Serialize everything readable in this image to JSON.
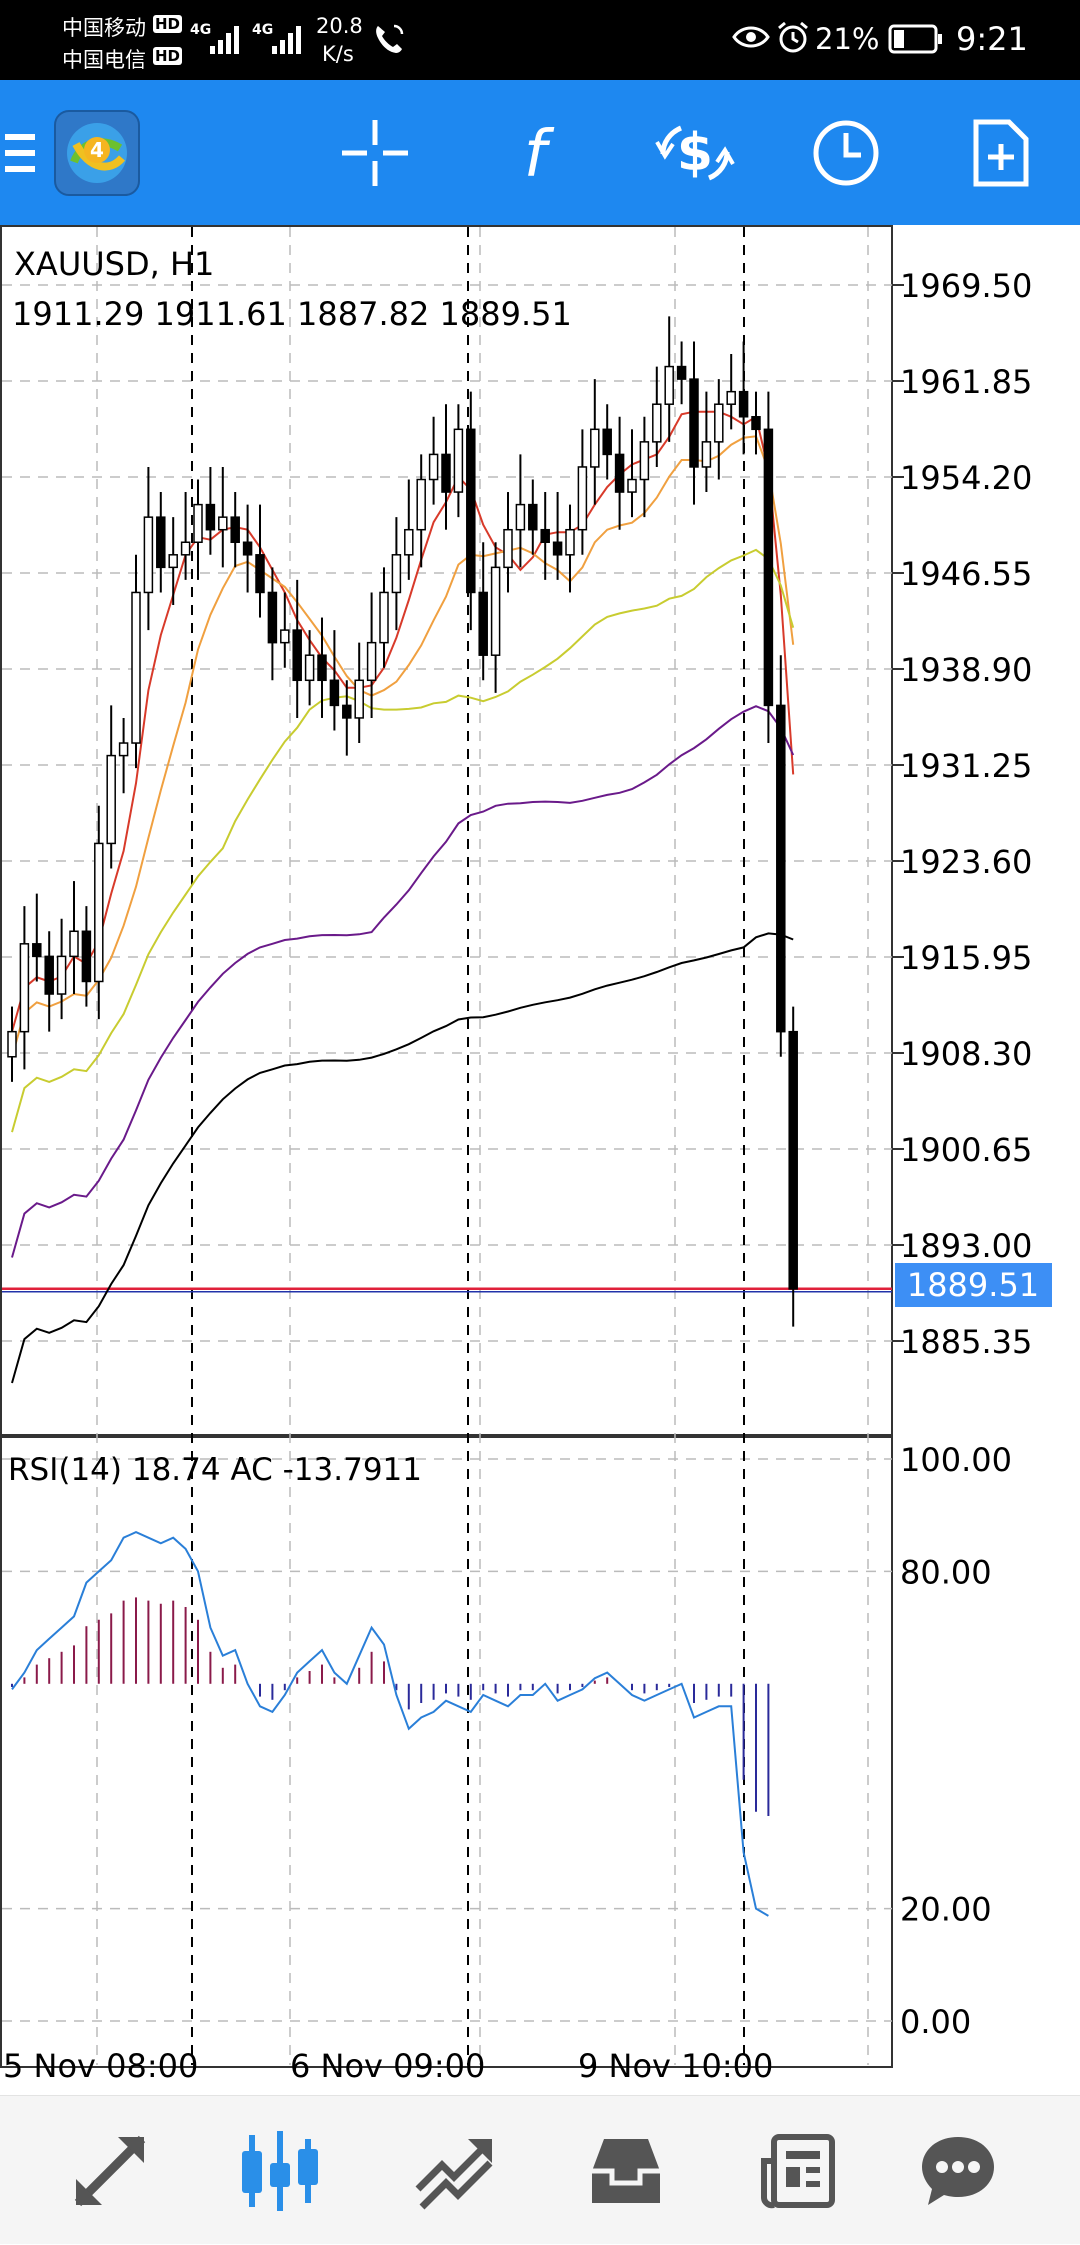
{
  "status_bar": {
    "carrier1": "中国移动",
    "carrier2": "中国电信",
    "hd_badge": "HD",
    "network1": "4G",
    "network2": "4G",
    "speed_value": "20.8",
    "speed_unit": "K/s",
    "battery_percent": "21%",
    "time": "9:21"
  },
  "toolbar": {
    "icons": [
      "menu-icon",
      "metatrader-logo-icon",
      "crosshair-icon",
      "indicators-icon",
      "trade-icon",
      "timeframe-icon",
      "new-order-icon"
    ],
    "accent": "#1e88f0"
  },
  "chart": {
    "symbol_line": "XAUUSD, H1",
    "ohlc_line": "1911.29 1911.61 1887.82 1889.51",
    "current_price": "1889.51",
    "price_ticks": [
      "1969.50",
      "1961.85",
      "1954.20",
      "1946.55",
      "1938.90",
      "1931.25",
      "1923.60",
      "1915.95",
      "1908.30",
      "1900.65",
      "1893.00",
      "1885.35"
    ],
    "rsi_label": "RSI(14) 18.74 AC -13.7911",
    "rsi_ticks": [
      "100.00",
      "80.00",
      "20.00",
      "0.00"
    ],
    "date_labels": [
      "5 Nov 08:00",
      "6 Nov 09:00",
      "9 Nov 10:00"
    ],
    "colors": {
      "bid_line": "#e0203a",
      "price_badge": "#3d8ff5",
      "ma_fast": "#d83a2a",
      "ma_mid": "#f0a040",
      "ma_slow": "#c8cc30",
      "ma_long": "#6a1a8a",
      "ma_longest": "#000000",
      "rsi_line": "#2a7fd8",
      "ac_up": "#8a1a4a",
      "ac_down": "#2a2a9a"
    }
  },
  "bottom_nav": {
    "items": [
      "quotes-icon",
      "charts-icon",
      "trade-icon",
      "history-icon",
      "news-icon",
      "messages-icon"
    ],
    "active_index": 1
  }
}
